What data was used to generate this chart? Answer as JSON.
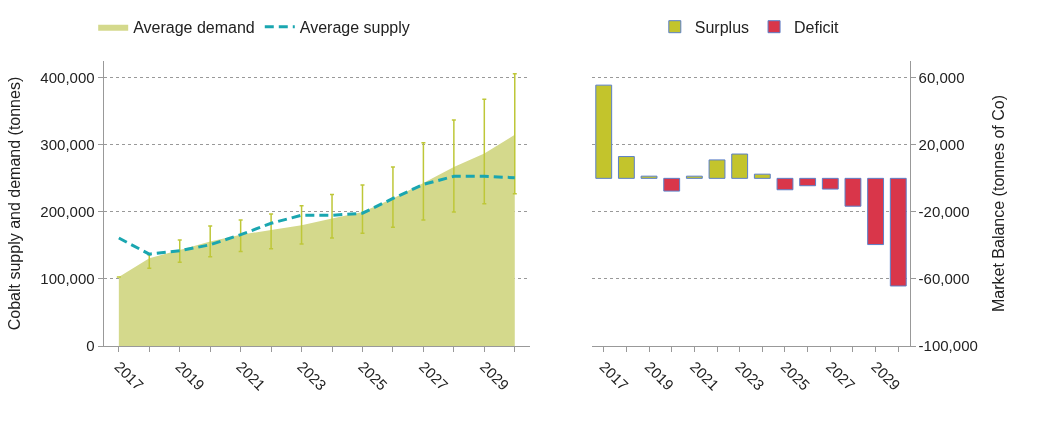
{
  "chart_data": [
    {
      "type": "area",
      "ylabel": "Cobalt supply and demand (tonnes)",
      "x": [
        2017,
        2018,
        2019,
        2020,
        2021,
        2022,
        2023,
        2024,
        2025,
        2026,
        2027,
        2028,
        2029,
        2030
      ],
      "xlim": [
        2016.5,
        2030.5
      ],
      "xticks": [
        2017,
        {
          "value": 2018,
          "label": null
        },
        2019,
        {
          "value": 2020,
          "label": null
        },
        2021,
        {
          "value": 2022,
          "label": null
        },
        2023,
        {
          "value": 2024,
          "label": null
        },
        2025,
        {
          "value": 2026,
          "label": null
        },
        2027,
        {
          "value": 2028,
          "label": null
        },
        2029,
        {
          "value": 2030,
          "label": null
        }
      ],
      "ylim": [
        0,
        425000
      ],
      "yticks": [
        0,
        {
          "value": 100000,
          "label": "100,000"
        },
        {
          "value": 200000,
          "label": "200,000"
        },
        {
          "value": 300000,
          "label": "300,000"
        },
        {
          "value": 400000,
          "label": "400,000"
        }
      ],
      "grid": "y",
      "legend": "top",
      "series": [
        {
          "name": "Average demand",
          "color": "#d4d98c",
          "values": [
            103000,
            131000,
            143000,
            156000,
            166000,
            173000,
            180000,
            190000,
            200000,
            220000,
            243000,
            267000,
            287000,
            315000
          ],
          "errors": [
            null,
            [
              116000,
              136000
            ],
            [
              125000,
              158000
            ],
            [
              133000,
              179000
            ],
            [
              141000,
              188000
            ],
            [
              145000,
              197000
            ],
            [
              152000,
              209000
            ],
            [
              161000,
              226000
            ],
            [
              168000,
              240000
            ],
            [
              177000,
              267000
            ],
            [
              188000,
              303000
            ],
            [
              200000,
              337000
            ],
            [
              212000,
              368000
            ],
            [
              227000,
              406000
            ]
          ]
        },
        {
          "name": "Average supply",
          "type": "line",
          "line_style": "dashed",
          "color": "#1aa6b0",
          "values": [
            161000,
            137000,
            142000,
            151000,
            166000,
            183000,
            195000,
            195000,
            198000,
            220000,
            241000,
            253000,
            253000,
            251000
          ]
        }
      ]
    },
    {
      "type": "bar",
      "y2label": "Market Balance (tonnes of Co)",
      "x": [
        2017,
        2018,
        2019,
        2020,
        2021,
        2022,
        2023,
        2024,
        2025,
        2026,
        2027,
        2028,
        2029,
        2030
      ],
      "xlim": [
        2016.5,
        2030.5
      ],
      "xticks": [
        2017,
        {
          "value": 2018,
          "label": null
        },
        2019,
        {
          "value": 2020,
          "label": null
        },
        2021,
        {
          "value": 2022,
          "label": null
        },
        2023,
        {
          "value": 2024,
          "label": null
        },
        2025,
        {
          "value": 2026,
          "label": null
        },
        2027,
        {
          "value": 2028,
          "label": null
        },
        2029,
        {
          "value": 2030,
          "label": null
        }
      ],
      "y2lim": [
        -100000,
        70000
      ],
      "y2ticks": [
        {
          "value": -100000,
          "label": "-100,000"
        },
        {
          "value": -60000,
          "label": "-60,000"
        },
        {
          "value": -20000,
          "label": "-20,000"
        },
        {
          "value": 20000,
          "label": "20,000"
        },
        {
          "value": 60000,
          "label": "60,000"
        }
      ],
      "grid": "y",
      "legend": "top",
      "series": [
        {
          "name": "Surplus",
          "axis": "y2",
          "color": "#c3c42c",
          "values": [
            55600,
            13000,
            1300,
            null,
            1300,
            11000,
            14500,
            2500,
            null,
            null,
            null,
            null,
            null,
            null
          ]
        },
        {
          "name": "Deficit",
          "axis": "y2",
          "color": "#d9364a",
          "values": [
            null,
            null,
            null,
            -7600,
            null,
            null,
            null,
            null,
            -6800,
            -4400,
            -6400,
            -16600,
            -39500,
            -64200
          ]
        }
      ]
    }
  ]
}
